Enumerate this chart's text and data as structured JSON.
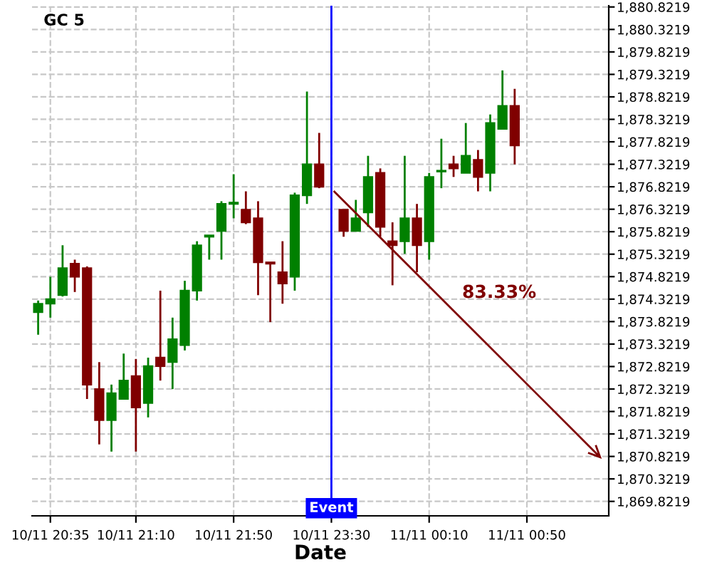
{
  "chart_data": {
    "type": "candlestick",
    "title": "GC 5",
    "xlabel": "Date",
    "categories": [
      null,
      "10/11 20:35",
      null,
      null,
      null,
      null,
      null,
      null,
      "10/11 21:10",
      null,
      null,
      null,
      null,
      null,
      null,
      null,
      "10/11 21:50",
      null,
      null,
      null,
      null,
      null,
      null,
      null,
      "10/11 23:30",
      null,
      null,
      null,
      null,
      null,
      null,
      null,
      "11/11 00:10",
      null,
      null,
      null,
      null,
      null,
      null,
      null,
      "11/11 00:50",
      null,
      null,
      null,
      null,
      null,
      null
    ],
    "ohlc": [
      [
        1874.03,
        1874.29,
        1873.53,
        1874.22
      ],
      [
        1874.22,
        1874.82,
        1873.91,
        1874.32
      ],
      [
        1874.41,
        1875.52,
        1874.38,
        1875.01
      ],
      [
        1875.11,
        1875.2,
        1874.48,
        1874.82
      ],
      [
        1875.01,
        1875.05,
        1872.1,
        1872.42
      ],
      [
        1872.32,
        1872.92,
        1871.09,
        1871.63
      ],
      [
        1871.63,
        1872.42,
        1870.93,
        1872.23
      ],
      [
        1872.1,
        1873.11,
        1872.1,
        1872.51
      ],
      [
        1872.61,
        1872.99,
        1870.93,
        1871.91
      ],
      [
        1872.01,
        1873.02,
        1871.69,
        1872.83
      ],
      [
        1873.02,
        1874.51,
        1872.51,
        1872.83
      ],
      [
        1872.92,
        1873.91,
        1872.32,
        1873.43
      ],
      [
        1873.3,
        1874.73,
        1873.18,
        1874.51
      ],
      [
        1874.51,
        1875.61,
        1874.29,
        1875.52
      ],
      [
        1875.71,
        1875.74,
        1875.2,
        1875.74
      ],
      [
        1875.84,
        1876.5,
        1875.2,
        1876.44
      ],
      [
        1876.44,
        1877.1,
        1876.12,
        1876.47
      ],
      [
        1876.31,
        1876.72,
        1875.99,
        1876.03
      ],
      [
        1876.12,
        1876.5,
        1874.41,
        1875.14
      ],
      [
        1875.14,
        1875.14,
        1873.81,
        1875.11
      ],
      [
        1874.92,
        1875.61,
        1874.22,
        1874.67
      ],
      [
        1874.82,
        1876.69,
        1874.51,
        1876.63
      ],
      [
        1876.63,
        1878.94,
        1876.44,
        1877.32
      ],
      [
        1877.32,
        1878.02,
        1876.79,
        1876.82
      ],
      null,
      [
        1876.31,
        1876.31,
        1875.71,
        1875.84
      ],
      [
        1875.84,
        1876.53,
        1875.84,
        1876.12
      ],
      [
        1876.25,
        1877.51,
        1875.93,
        1877.04
      ],
      [
        1877.13,
        1877.23,
        1875.71,
        1875.93
      ],
      [
        1875.61,
        1876.03,
        1874.63,
        1875.52
      ],
      [
        1875.61,
        1877.51,
        1875.33,
        1876.12
      ],
      [
        1876.12,
        1876.44,
        1874.92,
        1875.52
      ],
      [
        1875.61,
        1877.13,
        1875.2,
        1877.04
      ],
      [
        1877.16,
        1877.89,
        1876.79,
        1877.17
      ],
      [
        1877.32,
        1877.51,
        1877.04,
        1877.23
      ],
      [
        1877.13,
        1878.24,
        1877.13,
        1877.51
      ],
      [
        1877.42,
        1877.64,
        1876.72,
        1877.04
      ],
      [
        1877.13,
        1878.43,
        1876.72,
        1878.24
      ],
      [
        1878.11,
        1879.41,
        1878.11,
        1878.62
      ],
      [
        1878.62,
        1879.0,
        1877.32,
        1877.74
      ],
      null,
      null,
      null,
      null,
      null,
      null,
      null
    ],
    "colors": [
      "#008000",
      "#008000",
      "#008000",
      "#800000",
      "#800000",
      "#800000",
      "#008000",
      "#008000",
      "#800000",
      "#008000",
      "#800000",
      "#008000",
      "#008000",
      "#008000",
      "#008000",
      "#008000",
      "#008000",
      "#800000",
      "#800000",
      "#800000",
      "#800000",
      "#008000",
      "#008000",
      "#800000",
      null,
      "#800000",
      "#008000",
      "#008000",
      "#800000",
      "#800000",
      "#008000",
      "#800000",
      "#008000",
      "#008000",
      "#800000",
      "#008000",
      "#800000",
      "#008000",
      "#008000",
      "#800000",
      null,
      null,
      null,
      null,
      null,
      null,
      null
    ],
    "annotations": [
      "83.33%"
    ],
    "ref_lines": [
      {
        "axis": "x",
        "value": "10/11 23:30",
        "label": "Event",
        "color": "#0000ff"
      }
    ],
    "ylim": [
      1869.5,
      1880.85
    ],
    "yticks": [
      {
        "value": 1869.8219,
        "label": "1,869.8219"
      },
      {
        "value": 1870.3219,
        "label": "1,870.3219"
      },
      {
        "value": 1870.8219,
        "label": "1,870.8219"
      },
      {
        "value": 1871.3219,
        "label": "1,871.3219"
      },
      {
        "value": 1871.8219,
        "label": "1,871.8219"
      },
      {
        "value": 1872.3219,
        "label": "1,872.3219"
      },
      {
        "value": 1872.8219,
        "label": "1,872.8219"
      },
      {
        "value": 1873.3219,
        "label": "1,873.3219"
      },
      {
        "value": 1873.8219,
        "label": "1,873.8219"
      },
      {
        "value": 1874.3219,
        "label": "1,874.3219"
      },
      {
        "value": 1874.8219,
        "label": "1,874.8219"
      },
      {
        "value": 1875.3219,
        "label": "1,875.3219"
      },
      {
        "value": 1875.8219,
        "label": "1,875.8219"
      },
      {
        "value": 1876.3219,
        "label": "1,876.3219"
      },
      {
        "value": 1876.8219,
        "label": "1,876.8219"
      },
      {
        "value": 1877.3219,
        "label": "1,877.3219"
      },
      {
        "value": 1877.8219,
        "label": "1,877.8219"
      },
      {
        "value": 1878.3219,
        "label": "1,878.3219"
      },
      {
        "value": 1878.8219,
        "label": "1,878.8219"
      },
      {
        "value": 1879.3219,
        "label": "1,879.3219"
      },
      {
        "value": 1879.8219,
        "label": "1,879.8219"
      },
      {
        "value": 1880.3219,
        "label": "1,880.3219"
      },
      {
        "value": 1880.8219,
        "label": "1,880.8219"
      }
    ],
    "grid": true,
    "legend": false
  }
}
